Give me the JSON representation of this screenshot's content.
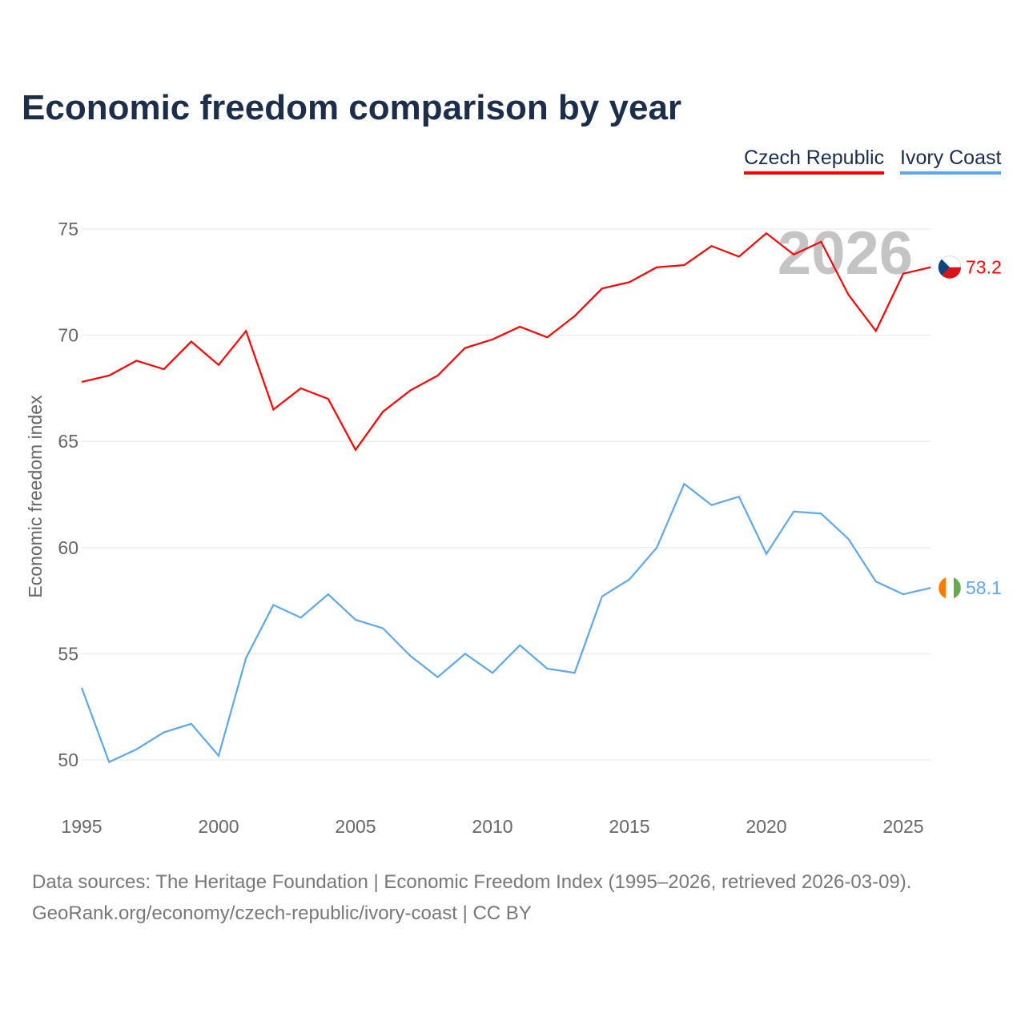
{
  "title": "Economic freedom comparison by year",
  "footer": {
    "line1": "Data sources: The Heritage Foundation | Economic Freedom Index (1995–2026, retrieved 2026-03-09).",
    "line2": "GeoRank.org/economy/czech-republic/ivory-coast | CC BY"
  },
  "chart_data": {
    "type": "line",
    "title": "Economic freedom comparison by year",
    "xlabel": "",
    "ylabel": "Economic freedom index",
    "x": [
      1995,
      1996,
      1997,
      1998,
      1999,
      2000,
      2001,
      2002,
      2003,
      2004,
      2005,
      2006,
      2007,
      2008,
      2009,
      2010,
      2011,
      2012,
      2013,
      2014,
      2015,
      2016,
      2017,
      2018,
      2019,
      2020,
      2021,
      2022,
      2023,
      2024,
      2025,
      2026
    ],
    "xticks": [
      "1995",
      "2000",
      "2005",
      "2010",
      "2015",
      "2020",
      "2025"
    ],
    "yticks": [
      "50",
      "55",
      "60",
      "65",
      "70",
      "75"
    ],
    "xlim": [
      1995,
      2026
    ],
    "ylim": [
      48.5,
      77
    ],
    "grid": true,
    "legend_position": "top-right",
    "year_watermark": "2026",
    "series": [
      {
        "name": "Czech Republic",
        "color": "#ff0000",
        "end_label": "73.2",
        "values": [
          67.8,
          68.1,
          68.8,
          68.4,
          69.7,
          68.6,
          70.2,
          66.5,
          67.5,
          67.0,
          64.6,
          66.4,
          67.4,
          68.1,
          69.4,
          69.8,
          70.4,
          69.9,
          70.9,
          72.2,
          72.5,
          73.2,
          73.3,
          74.2,
          73.7,
          74.8,
          73.8,
          74.4,
          71.9,
          70.2,
          72.9,
          73.2
        ]
      },
      {
        "name": "Ivory Coast",
        "color": "#5fa8e8",
        "end_label": "58.1",
        "values": [
          53.4,
          49.9,
          50.5,
          51.3,
          51.7,
          50.2,
          54.8,
          57.3,
          56.7,
          57.8,
          56.6,
          56.2,
          54.9,
          53.9,
          55.0,
          54.1,
          55.4,
          54.3,
          54.1,
          57.7,
          58.5,
          60.0,
          63.0,
          62.0,
          62.4,
          59.7,
          61.7,
          61.6,
          60.4,
          58.4,
          57.8,
          58.1
        ]
      }
    ]
  }
}
